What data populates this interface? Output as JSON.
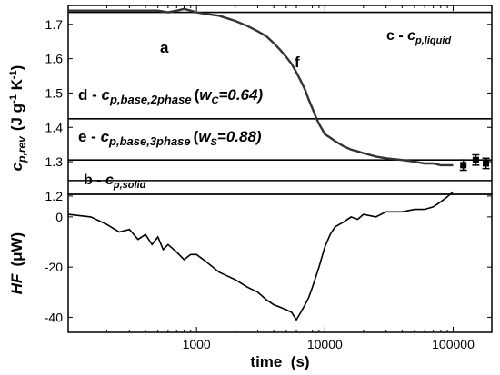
{
  "chart_data": [
    {
      "type": "line",
      "panel": "top",
      "ylabel": "c_p,rev (J g-1 K-1)",
      "ylabel_parts": {
        "sym": "c",
        "sub": "p,rev",
        "unit_open": "(J g",
        "exp1": "-1",
        "mid": " K",
        "exp2": "-1",
        "unit_close": ")"
      },
      "xscale": "log",
      "xlim": [
        100,
        200000
      ],
      "ylim": [
        1.205,
        1.755
      ],
      "yticks": [
        1.2,
        1.3,
        1.4,
        1.5,
        1.6,
        1.7
      ],
      "ytick_labels": [
        "1.2",
        "1.3",
        "1.4",
        "1.5",
        "1.6",
        "1.7"
      ],
      "reference_lines": [
        {
          "key": "c",
          "y": 1.735
        },
        {
          "key": "d",
          "y": 1.425
        },
        {
          "key": "e",
          "y": 1.305
        },
        {
          "key": "b",
          "y": 1.245
        }
      ],
      "series": [
        {
          "x": [
            100,
            150,
            200,
            300,
            400,
            500,
            600,
            700,
            800,
            900,
            1000,
            1200,
            1500,
            2000,
            2500,
            3000,
            3500,
            4000,
            4500,
            5000,
            5500,
            6000,
            6500,
            7000,
            7500,
            8000,
            8500,
            9000,
            9500,
            10000,
            11000,
            12000,
            14000,
            16000,
            18000,
            20000,
            25000,
            30000,
            40000,
            50000,
            60000,
            70000,
            80000,
            90000,
            100000
          ],
          "y": [
            1.74,
            1.74,
            1.74,
            1.74,
            1.74,
            1.74,
            1.735,
            1.74,
            1.745,
            1.74,
            1.735,
            1.73,
            1.725,
            1.71,
            1.695,
            1.68,
            1.665,
            1.645,
            1.625,
            1.605,
            1.585,
            1.56,
            1.535,
            1.51,
            1.48,
            1.455,
            1.43,
            1.41,
            1.395,
            1.38,
            1.37,
            1.36,
            1.345,
            1.335,
            1.33,
            1.325,
            1.315,
            1.31,
            1.305,
            1.3,
            1.295,
            1.295,
            1.29,
            1.29,
            1.29
          ]
        },
        {
          "style": "errorbar",
          "x": [
            120000,
            150000,
            180000
          ],
          "y": [
            1.29,
            1.305,
            1.295
          ],
          "err": [
            0.015,
            0.015,
            0.015
          ]
        }
      ],
      "annotations": [
        {
          "key": "a",
          "text": "a"
        },
        {
          "key": "f",
          "text": "f"
        },
        {
          "key": "c",
          "prefix": "c - ",
          "sym": "c",
          "sub": "p,liquid"
        },
        {
          "key": "d",
          "prefix": "d - ",
          "sym": "c",
          "sub": "p,base,2phase",
          "paren": "(",
          "w": "w",
          "wsub": "C",
          "val": "=0.64)"
        },
        {
          "key": "e",
          "prefix": "e - ",
          "sym": "c",
          "sub": "p,base,3phase",
          "paren": "(",
          "w": "w",
          "wsub": "S",
          "val": "=0.88)"
        },
        {
          "key": "b",
          "prefix": "b - ",
          "sym": "c",
          "sub": "p,solid"
        }
      ]
    },
    {
      "type": "line",
      "panel": "bottom",
      "ylabel": "HF (μW)",
      "ylabel_parts": {
        "sym": "HF",
        "unit": "(μW)"
      },
      "xscale": "log",
      "xlim": [
        100,
        200000
      ],
      "ylim": [
        -46,
        9
      ],
      "yticks": [
        -40,
        -20,
        0
      ],
      "ytick_labels": [
        "-40",
        "-20",
        "0"
      ],
      "xticks": [
        1000,
        10000,
        100000
      ],
      "xtick_labels": [
        "1000",
        "10000",
        "100000"
      ],
      "xlabel": "time  (s)",
      "series": [
        {
          "x": [
            100,
            150,
            200,
            250,
            300,
            350,
            400,
            450,
            500,
            550,
            600,
            700,
            800,
            900,
            1000,
            1200,
            1500,
            2000,
            2500,
            3000,
            3500,
            4000,
            4500,
            5000,
            5500,
            6000,
            6500,
            7000,
            7500,
            8000,
            9000,
            10000,
            11000,
            12000,
            14000,
            16000,
            18000,
            20000,
            25000,
            30000,
            40000,
            50000,
            60000,
            70000,
            80000,
            90000,
            100000
          ],
          "y": [
            1,
            0,
            -3,
            -6,
            -5,
            -9,
            -7,
            -11,
            -8,
            -13,
            -11,
            -14,
            -17,
            -15,
            -15,
            -18,
            -22,
            -25,
            -28,
            -30,
            -33,
            -35,
            -36,
            -37,
            -38,
            -41,
            -38,
            -35,
            -32,
            -28,
            -20,
            -12,
            -7,
            -4,
            -2,
            0,
            -1,
            1,
            0,
            2,
            2,
            3,
            3,
            4,
            6,
            8,
            10
          ]
        }
      ]
    }
  ]
}
